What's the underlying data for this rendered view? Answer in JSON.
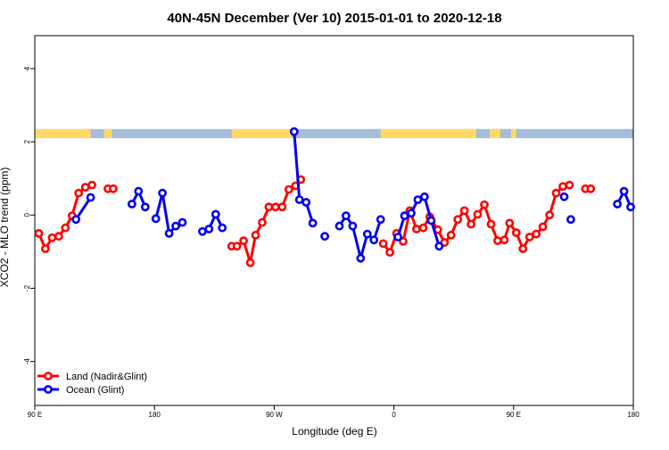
{
  "chart_data": {
    "type": "line",
    "title": "40N-45N December (Ver 10)   2015-01-01 to 2020-12-18",
    "xlabel": "Longitude (deg E)",
    "ylabel": "XCO2 - MLO trend (ppm)",
    "xlim": [
      90,
      540
    ],
    "ylim": [
      -5.2,
      4.9
    ],
    "x_ticks": [
      {
        "value": 90,
        "label": "90 E"
      },
      {
        "value": 180,
        "label": "180"
      },
      {
        "value": 270,
        "label": "90 W"
      },
      {
        "value": 360,
        "label": "0"
      },
      {
        "value": 450,
        "label": "90 E"
      },
      {
        "value": 540,
        "label": "180"
      }
    ],
    "y_ticks": [
      {
        "value": -4,
        "label": "-4"
      },
      {
        "value": -2,
        "label": "-2"
      },
      {
        "value": 0,
        "label": "0"
      },
      {
        "value": 2,
        "label": "2"
      },
      {
        "value": 4,
        "label": "4"
      }
    ],
    "legend": {
      "position": "bottom-left",
      "entries": [
        {
          "label": "Land (Nadir&Glint)",
          "color": "#ff0000"
        },
        {
          "label": "Ocean (Glint)",
          "color": "#0000ee"
        }
      ]
    },
    "surface_band": {
      "y_range": [
        2.1,
        2.35
      ],
      "land_color": "#ffd966",
      "ocean_color": "#a4bddb",
      "land_segments": [
        [
          90,
          132
        ],
        [
          142,
          148
        ],
        [
          238,
          283
        ],
        [
          350,
          422
        ],
        [
          432,
          440
        ],
        [
          448,
          452
        ]
      ]
    },
    "series": [
      {
        "name": "Land (Nadir&Glint)",
        "color": "#ff0000",
        "segments": [
          [
            [
              93,
              -0.5
            ],
            [
              98,
              -0.92
            ],
            [
              103,
              -0.62
            ],
            [
              108,
              -0.58
            ],
            [
              113,
              -0.35
            ],
            [
              118,
              -0.02
            ],
            [
              123,
              0.6
            ],
            [
              128,
              0.76
            ],
            [
              133,
              0.82
            ]
          ],
          [
            [
              145,
              0.72
            ],
            [
              149,
              0.72
            ]
          ],
          [
            [
              238,
              -0.85
            ],
            [
              242,
              -0.85
            ],
            [
              247,
              -0.7
            ],
            [
              252,
              -1.3
            ],
            [
              256,
              -0.55
            ],
            [
              261,
              -0.2
            ],
            [
              266,
              0.22
            ],
            [
              271,
              0.22
            ],
            [
              276,
              0.22
            ],
            [
              281,
              0.7
            ],
            [
              286,
              0.8
            ],
            [
              290,
              0.97
            ]
          ],
          [
            [
              352,
              -0.78
            ],
            [
              357,
              -1.02
            ],
            [
              362,
              -0.5
            ],
            [
              367,
              -0.72
            ],
            [
              372,
              0.12
            ],
            [
              377,
              -0.38
            ],
            [
              382,
              -0.35
            ],
            [
              387,
              -0.05
            ],
            [
              393,
              -0.4
            ],
            [
              398,
              -0.75
            ],
            [
              403,
              -0.55
            ],
            [
              408,
              -0.12
            ],
            [
              413,
              0.12
            ],
            [
              418,
              -0.25
            ],
            [
              423,
              0.02
            ],
            [
              428,
              0.28
            ],
            [
              433,
              -0.25
            ],
            [
              438,
              -0.7
            ],
            [
              443,
              -0.68
            ],
            [
              447,
              -0.22
            ],
            [
              452,
              -0.48
            ],
            [
              457,
              -0.92
            ],
            [
              462,
              -0.6
            ],
            [
              467,
              -0.52
            ],
            [
              472,
              -0.32
            ],
            [
              477,
              0.0
            ],
            [
              482,
              0.6
            ],
            [
              487,
              0.78
            ],
            [
              492,
              0.82
            ]
          ],
          [
            [
              504,
              0.72
            ],
            [
              508,
              0.72
            ]
          ]
        ]
      },
      {
        "name": "Ocean (Glint)",
        "color": "#0000ee",
        "segments": [
          [
            [
              121,
              -0.12
            ],
            [
              132,
              0.48
            ]
          ],
          [
            [
              163,
              0.3
            ],
            [
              168,
              0.65
            ],
            [
              173,
              0.22
            ]
          ],
          [
            [
              181,
              -0.1
            ],
            [
              186,
              0.6
            ],
            [
              191,
              -0.5
            ],
            [
              196,
              -0.3
            ],
            [
              201,
              -0.2
            ]
          ],
          [
            [
              216,
              -0.45
            ],
            [
              221,
              -0.38
            ],
            [
              226,
              0.02
            ],
            [
              231,
              -0.35
            ]
          ],
          [
            [
              285,
              2.28
            ],
            [
              289,
              0.42
            ],
            [
              294,
              0.35
            ],
            [
              299,
              -0.22
            ]
          ],
          [
            [
              308,
              -0.58
            ]
          ],
          [
            [
              319,
              -0.3
            ],
            [
              324,
              -0.02
            ],
            [
              329,
              -0.3
            ],
            [
              335,
              -1.18
            ],
            [
              340,
              -0.52
            ],
            [
              345,
              -0.68
            ],
            [
              350,
              -0.12
            ]
          ],
          [
            [
              363,
              -0.6
            ],
            [
              368,
              -0.02
            ],
            [
              373,
              0.05
            ],
            [
              378,
              0.42
            ],
            [
              383,
              0.5
            ],
            [
              388,
              -0.15
            ],
            [
              394,
              -0.85
            ]
          ],
          [
            [
              488,
              0.5
            ]
          ],
          [
            [
              493,
              -0.12
            ]
          ],
          [
            [
              528,
              0.3
            ],
            [
              533,
              0.65
            ],
            [
              538,
              0.22
            ]
          ]
        ]
      }
    ]
  }
}
